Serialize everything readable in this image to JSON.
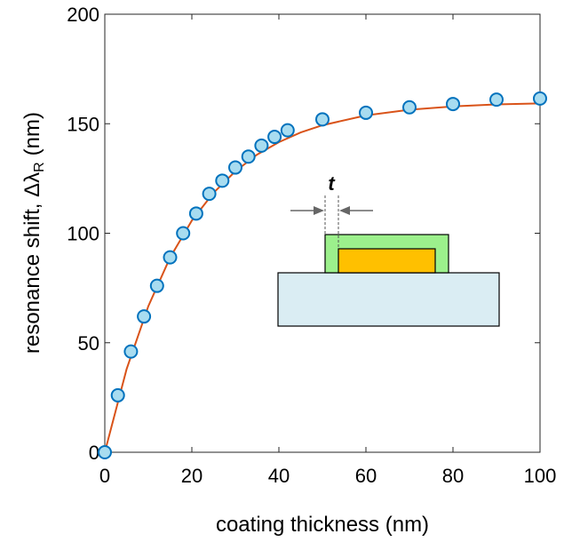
{
  "chart_data": {
    "type": "scatter",
    "xlabel": "coating thickness (nm)",
    "ylabel": {
      "text": "resonance shift, Δλ",
      "subscript": "R",
      "unit": "(nm)"
    },
    "xlim": [
      0,
      100
    ],
    "ylim": [
      0,
      200
    ],
    "xticks": [
      0,
      20,
      40,
      60,
      80,
      100
    ],
    "yticks": [
      0,
      50,
      100,
      150,
      200
    ],
    "inset_label": "t",
    "series": [
      {
        "style": "line",
        "color": "#d95319",
        "x": [
          0,
          5,
          10,
          15,
          20,
          25,
          30,
          35,
          40,
          45,
          50,
          60,
          70,
          80,
          90,
          100
        ],
        "values": [
          0,
          37.9,
          66.7,
          88.9,
          105.8,
          118.5,
          128.3,
          135.9,
          141.6,
          146,
          149.3,
          153.8,
          156.4,
          157.9,
          158.8,
          159.3
        ]
      },
      {
        "style": "markers",
        "color": "#0072bd",
        "fill": "#a8dcf0",
        "x": [
          0,
          3,
          6,
          9,
          12,
          15,
          18,
          21,
          24,
          27,
          30,
          33,
          36,
          39,
          42,
          50,
          60,
          70,
          80,
          90,
          100
        ],
        "values": [
          0,
          26,
          46,
          62,
          76,
          89,
          100,
          109,
          118,
          124,
          130,
          135,
          140,
          144,
          147,
          152,
          155,
          157.5,
          159,
          161,
          161.5
        ]
      }
    ]
  }
}
